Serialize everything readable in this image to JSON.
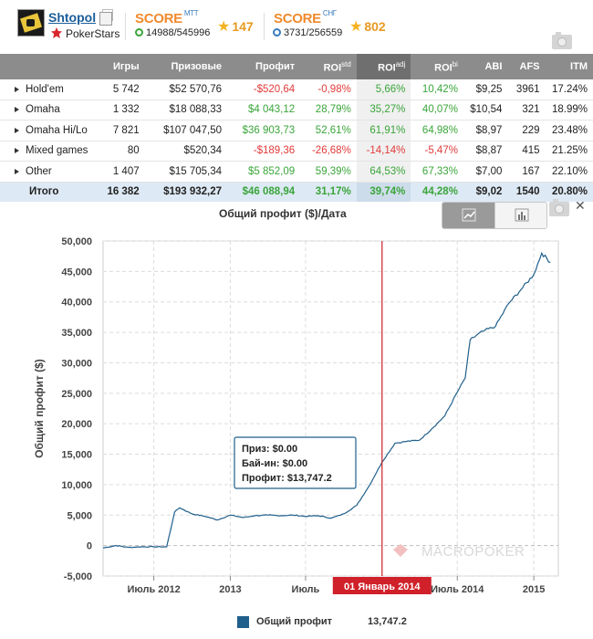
{
  "player": {
    "name": "Shtopol",
    "room": "PokerStars"
  },
  "scores": [
    {
      "label": "SCORE",
      "sup": "MTT",
      "rank": "14988/545996",
      "points": "147"
    },
    {
      "label": "SCORE",
      "sup": "СНГ",
      "rank": "3731/256559",
      "points": "802"
    }
  ],
  "table": {
    "headers": [
      "",
      "Игры",
      "Призовые",
      "Профит",
      "ROI",
      "ROI",
      "ROI",
      "ABI",
      "AFS",
      "ITM"
    ],
    "header_sups": [
      "",
      "",
      "",
      "",
      "std",
      "adj",
      "bi",
      "",
      "",
      ""
    ],
    "rows": [
      {
        "name": "Hold'em",
        "games": "5 742",
        "prize": "$52 570,76",
        "profit": "-$520,64",
        "roi_std": "-0,98%",
        "roi_adj": "5,66%",
        "roi_bi": "10,42%",
        "abi": "$9,25",
        "afs": "3961",
        "itm": "17.24%",
        "profit_sign": "neg",
        "std_sign": "neg",
        "adj_sign": "pos",
        "bi_sign": "pos"
      },
      {
        "name": "Omaha",
        "games": "1 332",
        "prize": "$18 088,33",
        "profit": "$4 043,12",
        "roi_std": "28,79%",
        "roi_adj": "35,27%",
        "roi_bi": "40,07%",
        "abi": "$10,54",
        "afs": "321",
        "itm": "18.99%",
        "profit_sign": "pos",
        "std_sign": "pos",
        "adj_sign": "pos",
        "bi_sign": "pos"
      },
      {
        "name": "Omaha Hi/Lo",
        "games": "7 821",
        "prize": "$107 047,50",
        "profit": "$36 903,73",
        "roi_std": "52,61%",
        "roi_adj": "61,91%",
        "roi_bi": "64,98%",
        "abi": "$8,97",
        "afs": "229",
        "itm": "23.48%",
        "profit_sign": "pos",
        "std_sign": "pos",
        "adj_sign": "pos",
        "bi_sign": "pos"
      },
      {
        "name": "Mixed games",
        "games": "80",
        "prize": "$520,34",
        "profit": "-$189,36",
        "roi_std": "-26,68%",
        "roi_adj": "-14,14%",
        "roi_bi": "-5,47%",
        "abi": "$8,87",
        "afs": "415",
        "itm": "21.25%",
        "profit_sign": "neg",
        "std_sign": "neg",
        "adj_sign": "neg",
        "bi_sign": "neg"
      },
      {
        "name": "Other",
        "games": "1 407",
        "prize": "$15 705,34",
        "profit": "$5 852,09",
        "roi_std": "59,39%",
        "roi_adj": "64,53%",
        "roi_bi": "67,33%",
        "abi": "$7,00",
        "afs": "167",
        "itm": "22.10%",
        "profit_sign": "pos",
        "std_sign": "pos",
        "adj_sign": "pos",
        "bi_sign": "pos"
      }
    ],
    "total": {
      "name": "Итого",
      "games": "16 382",
      "prize": "$193 932,27",
      "profit": "$46 088,94",
      "roi_std": "31,17%",
      "roi_adj": "39,74%",
      "roi_bi": "44,28%",
      "abi": "$9,02",
      "afs": "1540",
      "itm": "20.80%"
    }
  },
  "chart_data": {
    "type": "line",
    "title": "Общий профит ($)/Дата",
    "ylabel": "Общий профит ($)",
    "xlabel": "",
    "ylim": [
      -5000,
      50000
    ],
    "yticks": [
      "-5,000",
      "0",
      "5,000",
      "10,000",
      "15,000",
      "20,000",
      "25,000",
      "30,000",
      "35,000",
      "40,000",
      "45,000",
      "50,000"
    ],
    "ytick_values": [
      -5000,
      0,
      5000,
      10000,
      15000,
      20000,
      25000,
      30000,
      35000,
      40000,
      45000,
      50000
    ],
    "xlim": [
      "2012-03-01",
      "2015-03-01"
    ],
    "xticks": [
      {
        "label": "Июль 2012",
        "date": "2012-07-01"
      },
      {
        "label": "2013",
        "date": "2013-01-01"
      },
      {
        "label": "Июль",
        "date": "2013-07-01"
      },
      {
        "label": "Июль 2014",
        "date": "2014-07-01"
      },
      {
        "label": "2015",
        "date": "2015-01-01"
      }
    ],
    "crosshair": {
      "label": "01 Январь 2014",
      "date": "2014-01-01"
    },
    "tooltip": {
      "prize": "Приз: $0.00",
      "buyin": "Бай-ин: $0.00",
      "profit": "Профит: $13,747.2"
    },
    "legend": {
      "name": "Общий профит",
      "value": "13,747.2"
    },
    "watermark": "MACROPOKER",
    "grid": true,
    "colors": {
      "line": "#1f5f8b",
      "crosshair": "#d0202a"
    },
    "series": [
      {
        "name": "Общий профит",
        "x": [
          "2012-03-01",
          "2012-04-01",
          "2012-05-01",
          "2012-06-01",
          "2012-07-01",
          "2012-08-01",
          "2012-08-20",
          "2012-09-01",
          "2012-10-01",
          "2012-11-01",
          "2012-12-01",
          "2013-01-01",
          "2013-02-01",
          "2013-03-01",
          "2013-04-01",
          "2013-05-01",
          "2013-06-01",
          "2013-07-01",
          "2013-08-01",
          "2013-09-01",
          "2013-10-01",
          "2013-11-01",
          "2013-12-01",
          "2014-01-01",
          "2014-02-01",
          "2014-03-01",
          "2014-04-01",
          "2014-05-01",
          "2014-06-01",
          "2014-07-01",
          "2014-07-20",
          "2014-08-01",
          "2014-09-01",
          "2014-10-01",
          "2014-11-01",
          "2014-12-01",
          "2015-01-01",
          "2015-01-20",
          "2015-02-10"
        ],
        "values": [
          -400,
          0,
          -300,
          -200,
          -200,
          -200,
          5500,
          6200,
          5200,
          4800,
          4200,
          5000,
          4600,
          4900,
          5000,
          4900,
          5000,
          4800,
          4900,
          4500,
          5200,
          6600,
          9800,
          13700,
          16800,
          17100,
          17300,
          19200,
          21300,
          25200,
          27500,
          33800,
          35200,
          36000,
          39700,
          42000,
          44500,
          48000,
          46500
        ]
      }
    ]
  }
}
